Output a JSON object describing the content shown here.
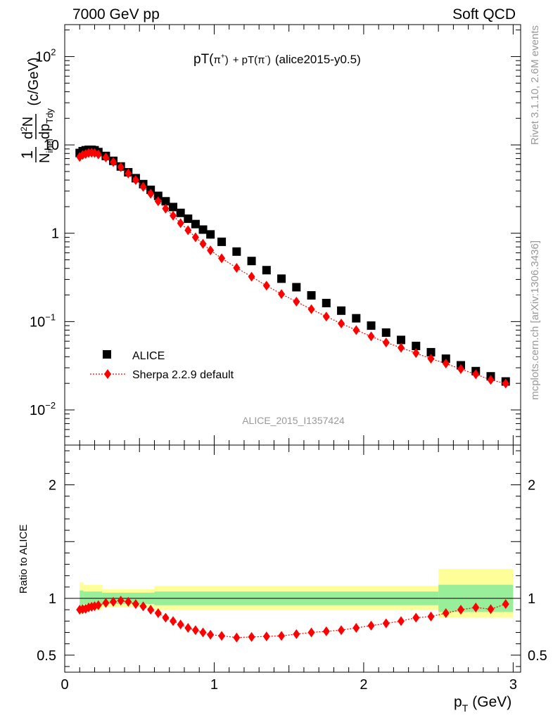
{
  "header": {
    "left": "7000 GeV pp",
    "right": "Soft QCD"
  },
  "side_text": {
    "rivet": "Rivet 3.1.10,  2.6M events",
    "mcplots": "mcplots.cern.ch [arXiv:1306.3436]"
  },
  "chart_data": [
    {
      "type": "scatter",
      "title": "pT(π+) + pT(π-) (alice2015-y0.5)",
      "title_parts": {
        "a": "pT(",
        "b": "π",
        "c": "+",
        "d": ")",
        "e": "+ pT(",
        "f": "π",
        "g": "-",
        "h": ")",
        "i": "(alice2015-y0.5)"
      },
      "ylabel_parts": {
        "one": "1",
        "n": "N",
        "sub": "inel",
        "num": "d",
        "num2": "N",
        "exp": "2",
        "den": "dp",
        "densub": "Tdy",
        "unit": "(c/GeV)"
      },
      "analysis_label": "ALICE_2015_I1357424",
      "yscale": "log",
      "xlim": [
        0,
        3.05
      ],
      "ylim": [
        0.004,
        230
      ],
      "y_ticks": [
        {
          "value": 100,
          "label": "10",
          "exp": "2"
        },
        {
          "value": 10,
          "label": "10",
          "exp": ""
        },
        {
          "value": 1,
          "label": "1",
          "exp": ""
        },
        {
          "value": 0.1,
          "label": "10",
          "exp": "−1"
        },
        {
          "value": 0.01,
          "label": "10",
          "exp": "−2"
        }
      ],
      "legend_position": "bottom-left",
      "x": [
        0.1,
        0.12,
        0.14,
        0.16,
        0.18,
        0.2,
        0.225,
        0.275,
        0.325,
        0.375,
        0.425,
        0.475,
        0.525,
        0.575,
        0.625,
        0.675,
        0.725,
        0.775,
        0.825,
        0.875,
        0.925,
        0.975,
        1.05,
        1.15,
        1.25,
        1.35,
        1.45,
        1.55,
        1.65,
        1.75,
        1.85,
        1.95,
        2.05,
        2.15,
        2.25,
        2.35,
        2.45,
        2.55,
        2.65,
        2.75,
        2.85,
        2.95
      ],
      "series": [
        {
          "name": "ALICE",
          "color": "#000000",
          "marker": "square",
          "values": [
            8.1,
            8.5,
            8.7,
            8.8,
            8.8,
            8.7,
            8.3,
            7.5,
            6.6,
            5.7,
            4.9,
            4.2,
            3.6,
            3.1,
            2.65,
            2.3,
            1.98,
            1.7,
            1.46,
            1.27,
            1.1,
            0.97,
            0.8,
            0.62,
            0.485,
            0.382,
            0.306,
            0.245,
            0.198,
            0.162,
            0.133,
            0.109,
            0.09,
            0.075,
            0.062,
            0.053,
            0.045,
            0.038,
            0.032,
            0.0275,
            0.024,
            0.021
          ]
        },
        {
          "name": "Sherpa 2.2.9 default",
          "color": "#ff0000",
          "marker": "diamond",
          "values": [
            7.3,
            7.7,
            7.9,
            8.1,
            8.15,
            8.1,
            7.8,
            7.2,
            6.4,
            5.6,
            4.75,
            4.0,
            3.35,
            2.8,
            2.3,
            1.9,
            1.58,
            1.3,
            1.08,
            0.9,
            0.76,
            0.64,
            0.52,
            0.405,
            0.322,
            0.255,
            0.205,
            0.168,
            0.138,
            0.114,
            0.095,
            0.08,
            0.068,
            0.058,
            0.0505,
            0.044,
            0.038,
            0.0335,
            0.029,
            0.0253,
            0.0219,
            0.0199
          ]
        }
      ]
    },
    {
      "type": "scatter",
      "ylabel": "Ratio to ALICE",
      "xlabel": "p_T (GeV)",
      "xlabel_parts": {
        "p": "p",
        "sub": "T",
        "unit": "(GeV)"
      },
      "xlim": [
        0,
        3.05
      ],
      "ylim": [
        0.35,
        2.35
      ],
      "x_ticks": [
        {
          "value": 0,
          "label": "0"
        },
        {
          "value": 1,
          "label": "1"
        },
        {
          "value": 2,
          "label": "2"
        },
        {
          "value": 3,
          "label": "3"
        }
      ],
      "y_ticks": [
        {
          "value": 2,
          "label": "2"
        },
        {
          "value": 1,
          "label": "1"
        },
        {
          "value": 0.5,
          "label": "0.5"
        }
      ],
      "band_edges": [
        0.1,
        0.125,
        0.25,
        0.6,
        2.5,
        3.0
      ],
      "band_green": [
        [
          0.93,
          1.07
        ],
        [
          0.95,
          1.06
        ],
        [
          0.95,
          1.05
        ],
        [
          0.94,
          1.06
        ],
        [
          0.88,
          1.12
        ]
      ],
      "band_yellow": [
        [
          0.86,
          1.14
        ],
        [
          0.9,
          1.12
        ],
        [
          0.92,
          1.08
        ],
        [
          0.9,
          1.11
        ],
        [
          0.83,
          1.26
        ]
      ],
      "series": [
        {
          "name": "Sherpa 2.2.9 default",
          "color": "#ff0000",
          "values": [
            0.9,
            0.905,
            0.908,
            0.92,
            0.926,
            0.931,
            0.94,
            0.96,
            0.97,
            0.98,
            0.97,
            0.95,
            0.93,
            0.9,
            0.87,
            0.83,
            0.8,
            0.77,
            0.74,
            0.72,
            0.7,
            0.68,
            0.67,
            0.655,
            0.66,
            0.665,
            0.67,
            0.685,
            0.7,
            0.71,
            0.72,
            0.74,
            0.76,
            0.78,
            0.8,
            0.83,
            0.84,
            0.87,
            0.9,
            0.92,
            0.905,
            0.95
          ]
        }
      ]
    }
  ]
}
